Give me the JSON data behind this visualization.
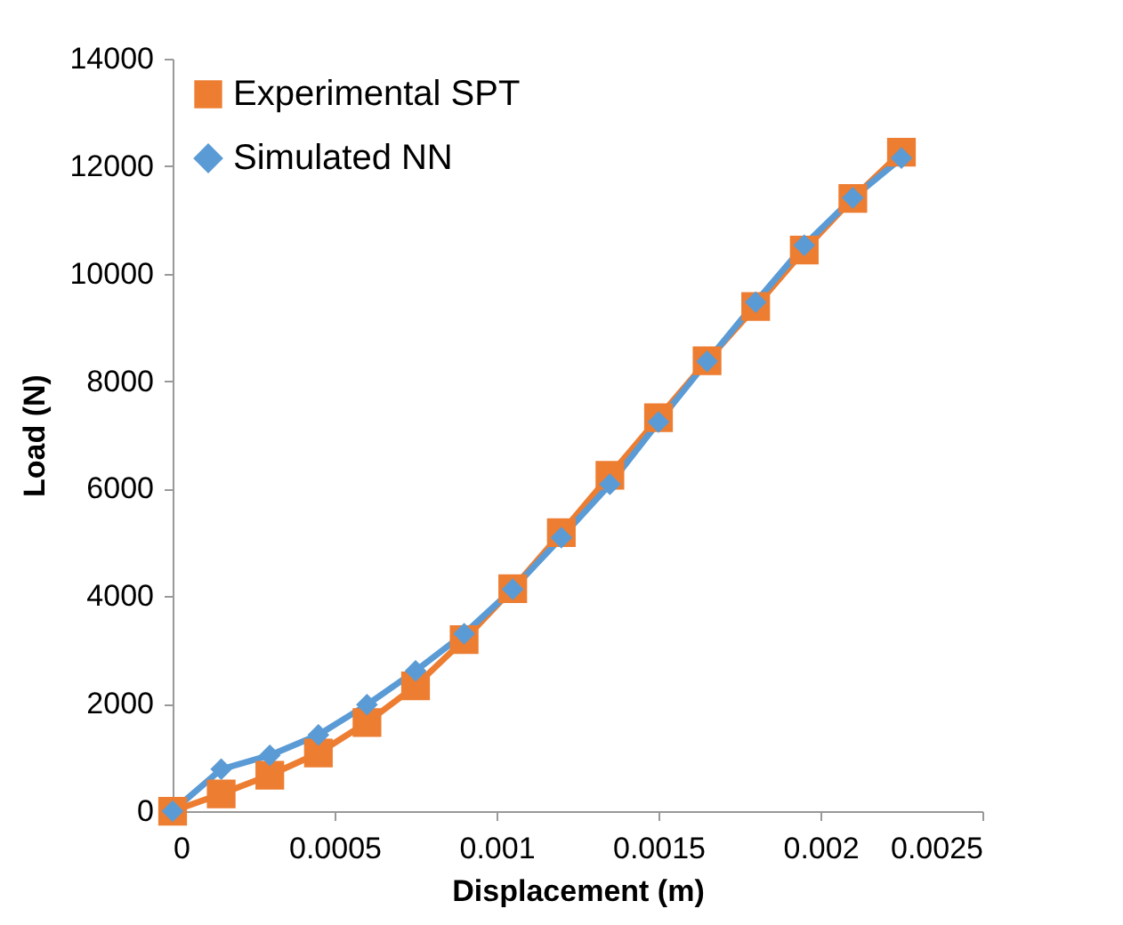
{
  "chart_data": {
    "type": "line",
    "xlabel": "Displacement (m)",
    "ylabel": "Load (N)",
    "x": [
      0,
      0.00015,
      0.0003,
      0.00045,
      0.0006,
      0.00075,
      0.0009,
      0.00105,
      0.0012,
      0.00135,
      0.0015,
      0.00165,
      0.0018,
      0.00195,
      0.0021,
      0.00225
    ],
    "series": [
      {
        "name": "Experimental SPT",
        "color": "#ed7d31",
        "marker": "square",
        "values": [
          0,
          320,
          670,
          1080,
          1650,
          2330,
          3190,
          4140,
          5180,
          6250,
          7320,
          8380,
          9390,
          10440,
          11400,
          12260
        ]
      },
      {
        "name": "Simulated NN",
        "color": "#5b9bd5",
        "marker": "diamond",
        "values": [
          0,
          780,
          1040,
          1420,
          1980,
          2610,
          3300,
          4130,
          5090,
          6080,
          7240,
          8370,
          9470,
          10530,
          11410,
          12150
        ]
      }
    ],
    "xlim": [
      0,
      0.0025
    ],
    "xticks": [
      0,
      0.0005,
      0.001,
      0.0015,
      0.002,
      0.0025
    ],
    "ylim": [
      0,
      14000
    ],
    "yticks": [
      0,
      2000,
      4000,
      6000,
      8000,
      10000,
      12000,
      14000
    ],
    "grid": false,
    "legend": "top left",
    "line_style": "solid"
  }
}
